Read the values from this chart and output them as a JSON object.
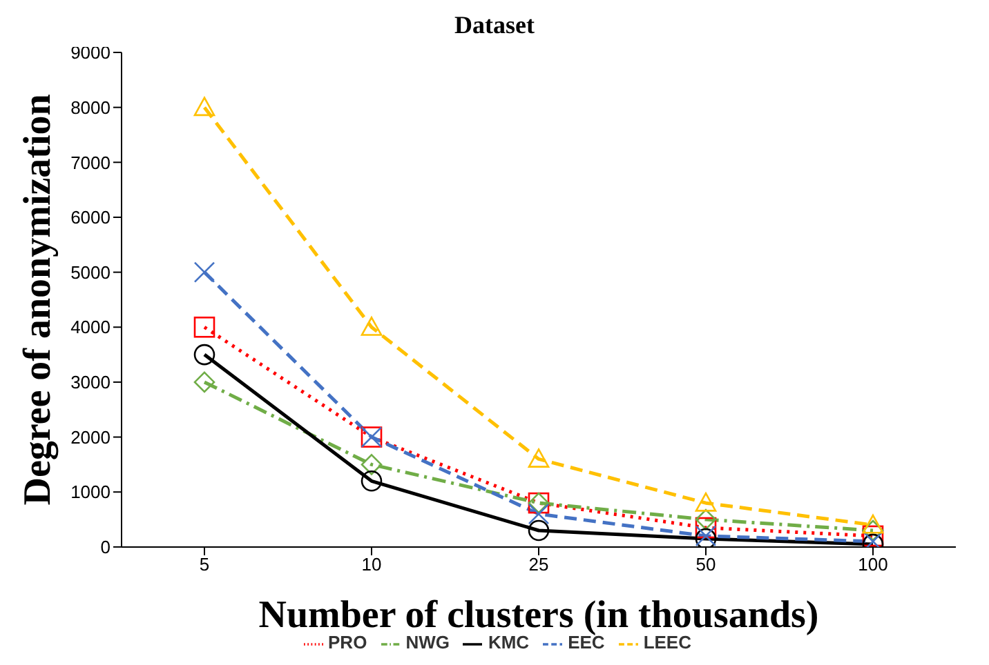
{
  "chart_data": {
    "type": "line",
    "title": "Dataset",
    "xlabel": "Number of clusters (in thousands)",
    "ylabel": "Degree of anonymization",
    "categories": [
      "5",
      "10",
      "25",
      "50",
      "100"
    ],
    "series": [
      {
        "name": "PRO",
        "color": "#ff0000",
        "values": [
          4000,
          2000,
          800,
          350,
          200
        ],
        "marker": "square",
        "line_style": "dotted"
      },
      {
        "name": "NWG",
        "color": "#70ad47",
        "values": [
          3000,
          1500,
          800,
          500,
          300
        ],
        "marker": "diamond",
        "line_style": "dashdot"
      },
      {
        "name": "KMC",
        "color": "#000000",
        "values": [
          3500,
          1200,
          300,
          150,
          50
        ],
        "marker": "circle",
        "line_style": "solid"
      },
      {
        "name": "EEC",
        "color": "#4472c4",
        "values": [
          5000,
          2000,
          600,
          200,
          100
        ],
        "marker": "cross",
        "line_style": "dashed"
      },
      {
        "name": "LEEC",
        "color": "#ffc000",
        "values": [
          8000,
          4000,
          1600,
          800,
          400
        ],
        "marker": "triangle",
        "line_style": "dashed"
      }
    ],
    "ylim": [
      0,
      9000
    ],
    "yticks": [
      0,
      1000,
      2000,
      3000,
      4000,
      5000,
      6000,
      7000,
      8000,
      9000
    ],
    "grid": false,
    "legend": "bottom"
  }
}
